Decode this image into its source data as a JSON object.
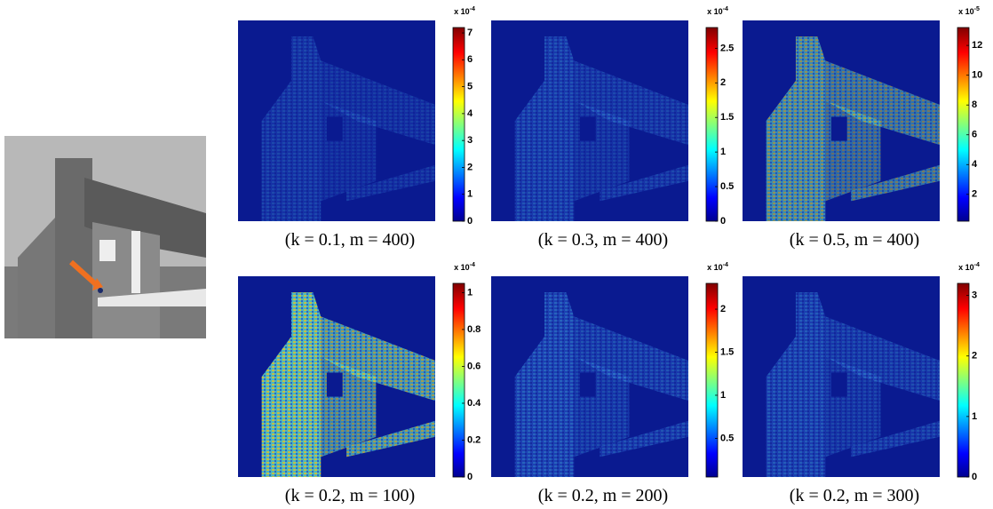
{
  "chart_data": [
    {
      "type": "heatmap",
      "caption": "(k = 0.1, m = 400)",
      "scale_label": "x 10",
      "scale_exponent": "-4",
      "clim": [
        0,
        7.2
      ],
      "cticks": [
        0,
        1,
        2,
        3,
        4,
        5,
        6,
        7
      ]
    },
    {
      "type": "heatmap",
      "caption": "(k = 0.3, m = 400)",
      "scale_label": "x 10",
      "scale_exponent": "-4",
      "clim": [
        0,
        2.8
      ],
      "cticks": [
        0,
        0.5,
        1,
        1.5,
        2,
        2.5
      ]
    },
    {
      "type": "heatmap",
      "caption": "(k = 0.5, m = 400)",
      "scale_label": "x 10",
      "scale_exponent": "-5",
      "clim": [
        0.2,
        13.2
      ],
      "cticks": [
        2,
        4,
        6,
        8,
        10,
        12
      ]
    },
    {
      "type": "heatmap",
      "caption": "(k = 0.2, m = 100)",
      "scale_label": "x 10",
      "scale_exponent": "-4",
      "clim": [
        0,
        1.05
      ],
      "cticks": [
        0,
        0.2,
        0.4,
        0.6,
        0.8,
        1
      ]
    },
    {
      "type": "heatmap",
      "caption": "(k = 0.2, m = 200)",
      "scale_label": "x 10",
      "scale_exponent": "-4",
      "clim": [
        0.05,
        2.3
      ],
      "cticks": [
        0.5,
        1,
        1.5,
        2
      ]
    },
    {
      "type": "heatmap",
      "caption": "(k = 0.2, m = 300)",
      "scale_label": "x 10",
      "scale_exponent": "-4",
      "clim": [
        0,
        3.2
      ],
      "cticks": [
        0,
        1,
        2,
        3
      ]
    }
  ]
}
